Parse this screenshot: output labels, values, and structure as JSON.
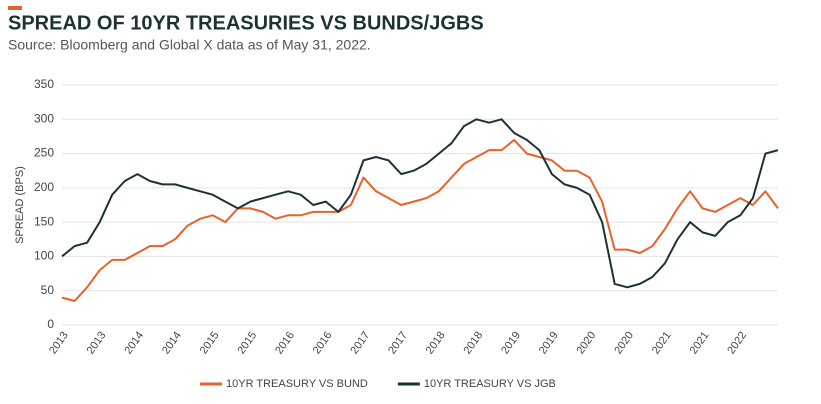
{
  "chart_data": {
    "type": "line",
    "title": "SPREAD OF 10YR TREASURIES VS BUNDS/JGBS",
    "subtitle": "Source: Bloomberg and Global X data as of May 31, 2022.",
    "y_label": "SPREAD (BPS)",
    "categories": [
      "2013",
      null,
      null,
      "2013",
      null,
      null,
      "2014",
      null,
      null,
      "2014",
      null,
      null,
      "2015",
      null,
      null,
      "2015",
      null,
      null,
      "2016",
      null,
      null,
      "2016",
      null,
      null,
      "2017",
      null,
      null,
      "2017",
      null,
      null,
      "2018",
      null,
      null,
      "2018",
      null,
      null,
      "2019",
      null,
      null,
      "2019",
      null,
      null,
      "2020",
      null,
      null,
      "2020",
      null,
      null,
      "2021",
      null,
      null,
      "2021",
      null,
      null,
      "2022",
      null,
      null,
      null
    ],
    "series": [
      {
        "name": "10YR TREASURY VS BUND",
        "color": "#e8622a",
        "values": [
          40,
          35,
          55,
          80,
          95,
          95,
          105,
          115,
          115,
          125,
          145,
          155,
          160,
          150,
          170,
          170,
          165,
          155,
          160,
          160,
          165,
          165,
          165,
          175,
          215,
          195,
          185,
          175,
          180,
          185,
          195,
          215,
          235,
          245,
          255,
          255,
          270,
          250,
          245,
          240,
          225,
          225,
          215,
          180,
          110,
          110,
          105,
          115,
          140,
          170,
          195,
          170,
          165,
          175,
          185,
          175,
          195,
          170
        ]
      },
      {
        "name": "10YR TREASURY VS JGB",
        "color": "#1c3237",
        "values": [
          100,
          115,
          120,
          150,
          190,
          210,
          220,
          210,
          205,
          205,
          200,
          195,
          190,
          180,
          170,
          180,
          185,
          190,
          195,
          190,
          175,
          180,
          165,
          190,
          240,
          245,
          240,
          220,
          225,
          235,
          250,
          265,
          290,
          300,
          295,
          300,
          280,
          270,
          255,
          220,
          205,
          200,
          190,
          150,
          60,
          55,
          60,
          70,
          90,
          125,
          150,
          135,
          130,
          150,
          160,
          185,
          250,
          255
        ]
      }
    ],
    "ylim": [
      0,
      350
    ],
    "yticks": [
      0,
      50,
      100,
      150,
      200,
      250,
      300,
      350
    ],
    "grid": true,
    "legend": "bottom"
  }
}
